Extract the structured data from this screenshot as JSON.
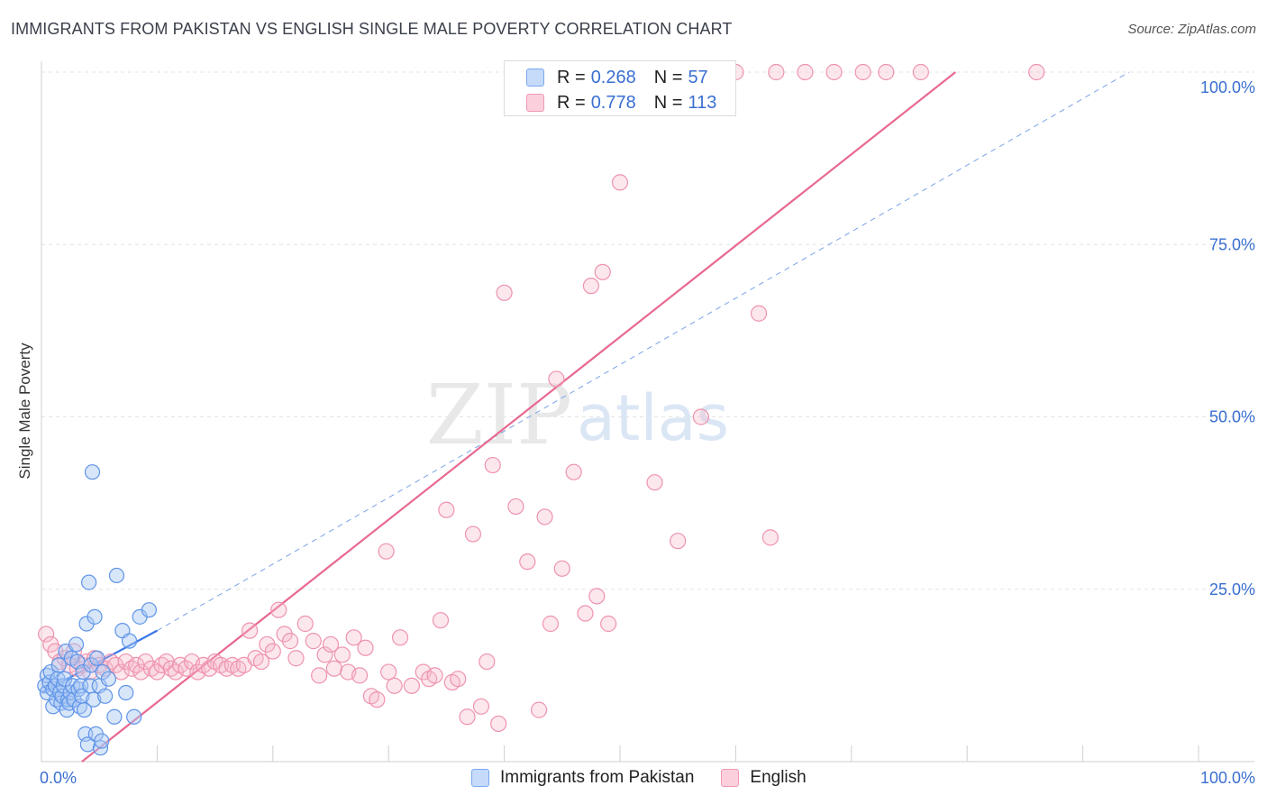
{
  "title": "IMMIGRANTS FROM PAKISTAN VS ENGLISH SINGLE MALE POVERTY CORRELATION CHART",
  "source": "Source: ZipAtlas.com",
  "watermark": {
    "zip": "ZIP",
    "atlas": "atlas"
  },
  "colors": {
    "blue": "#3b78e7",
    "blue_fill": "#a9c7f5",
    "pink": "#e8688f",
    "pink_fill": "#f7b9cc",
    "axis_label": "#3a6fd0",
    "grid": "#e3e3e3"
  },
  "legend": {
    "rows": [
      {
        "r_label": "R =",
        "r_value": "0.268",
        "n_label": "N =",
        "n_value": "57"
      },
      {
        "r_label": "R =",
        "r_value": "0.778",
        "n_label": "N =",
        "n_value": "113"
      }
    ]
  },
  "chart_data": {
    "type": "scatter",
    "title": "IMMIGRANTS FROM PAKISTAN VS ENGLISH SINGLE MALE POVERTY CORRELATION CHART",
    "xlabel": "",
    "ylabel": "Single Male Poverty",
    "xlim": [
      0,
      100
    ],
    "ylim": [
      0,
      100
    ],
    "x_tick_labels": [
      "0.0%",
      "100.0%"
    ],
    "y_tick_labels": [
      "25.0%",
      "50.0%",
      "75.0%",
      "100.0%"
    ],
    "y_ticks": [
      25,
      50,
      75,
      100
    ],
    "grid": true,
    "legend_position": "top-center",
    "series": [
      {
        "name": "Immigrants from Pakistan",
        "color": "#3b78e7",
        "r": 0.268,
        "n": 57,
        "trend_solid": [
          [
            0,
            10
          ],
          [
            10,
            19
          ]
        ],
        "trend_dashed": [
          [
            10,
            19
          ],
          [
            94,
            100
          ]
        ],
        "points": [
          [
            0.3,
            11
          ],
          [
            0.5,
            12.5
          ],
          [
            0.5,
            10
          ],
          [
            0.7,
            11.5
          ],
          [
            0.8,
            13
          ],
          [
            1.0,
            10.5
          ],
          [
            1.0,
            8
          ],
          [
            1.2,
            11
          ],
          [
            1.3,
            9
          ],
          [
            1.4,
            12
          ],
          [
            1.5,
            14
          ],
          [
            1.6,
            10
          ],
          [
            1.7,
            8.5
          ],
          [
            1.8,
            9.5
          ],
          [
            1.9,
            11
          ],
          [
            2.0,
            12
          ],
          [
            2.1,
            16
          ],
          [
            2.2,
            7.5
          ],
          [
            2.3,
            9
          ],
          [
            2.4,
            8.5
          ],
          [
            2.5,
            10
          ],
          [
            2.6,
            15
          ],
          [
            2.7,
            11
          ],
          [
            2.8,
            9
          ],
          [
            3.0,
            17
          ],
          [
            3.1,
            14.5
          ],
          [
            3.2,
            10.5
          ],
          [
            3.3,
            8
          ],
          [
            3.4,
            11
          ],
          [
            3.5,
            9.5
          ],
          [
            3.6,
            13
          ],
          [
            3.7,
            7.5
          ],
          [
            3.8,
            4
          ],
          [
            3.9,
            20
          ],
          [
            4.0,
            2.5
          ],
          [
            4.1,
            26
          ],
          [
            4.2,
            11
          ],
          [
            4.3,
            14
          ],
          [
            4.4,
            42
          ],
          [
            4.5,
            9
          ],
          [
            4.6,
            21
          ],
          [
            4.7,
            4
          ],
          [
            4.8,
            15
          ],
          [
            5.0,
            11
          ],
          [
            5.1,
            2
          ],
          [
            5.2,
            3
          ],
          [
            5.3,
            13
          ],
          [
            5.5,
            9.5
          ],
          [
            5.8,
            12
          ],
          [
            6.3,
            6.5
          ],
          [
            6.5,
            27
          ],
          [
            7.0,
            19
          ],
          [
            7.3,
            10
          ],
          [
            7.6,
            17.5
          ],
          [
            8.0,
            6.5
          ],
          [
            8.5,
            21
          ],
          [
            9.3,
            22
          ]
        ]
      },
      {
        "name": "English",
        "color": "#e8688f",
        "r": 0.778,
        "n": 113,
        "trend_solid": [
          [
            3.5,
            0
          ],
          [
            79,
            100
          ]
        ],
        "points": [
          [
            0.4,
            18.5
          ],
          [
            0.8,
            17
          ],
          [
            1.2,
            16
          ],
          [
            1.6,
            14.5
          ],
          [
            2.0,
            15
          ],
          [
            2.4,
            14
          ],
          [
            2.8,
            16
          ],
          [
            3.1,
            13.5
          ],
          [
            3.5,
            14
          ],
          [
            3.9,
            14.5
          ],
          [
            4.2,
            13
          ],
          [
            4.6,
            15
          ],
          [
            5.0,
            14
          ],
          [
            5.5,
            13.5
          ],
          [
            6.0,
            14.5
          ],
          [
            6.4,
            14
          ],
          [
            6.9,
            13
          ],
          [
            7.3,
            14.5
          ],
          [
            7.8,
            13.5
          ],
          [
            8.2,
            14
          ],
          [
            8.6,
            13
          ],
          [
            9.0,
            14.5
          ],
          [
            9.5,
            13.5
          ],
          [
            10.0,
            13
          ],
          [
            10.4,
            14
          ],
          [
            10.8,
            14.5
          ],
          [
            11.2,
            13.5
          ],
          [
            11.6,
            13
          ],
          [
            12.0,
            14
          ],
          [
            12.5,
            13.5
          ],
          [
            13.0,
            14.5
          ],
          [
            13.5,
            13
          ],
          [
            14.0,
            14
          ],
          [
            14.5,
            13.5
          ],
          [
            15.0,
            14.5
          ],
          [
            15.5,
            14
          ],
          [
            16.0,
            13.5
          ],
          [
            16.5,
            14
          ],
          [
            17.0,
            13.5
          ],
          [
            17.5,
            14
          ],
          [
            18.0,
            19
          ],
          [
            18.5,
            15
          ],
          [
            19.0,
            14.5
          ],
          [
            19.5,
            17
          ],
          [
            20.0,
            16
          ],
          [
            20.5,
            22
          ],
          [
            21.0,
            18.5
          ],
          [
            21.5,
            17.5
          ],
          [
            22.0,
            15
          ],
          [
            22.8,
            20
          ],
          [
            23.5,
            17.5
          ],
          [
            24.0,
            12.5
          ],
          [
            24.5,
            15.5
          ],
          [
            25.0,
            17
          ],
          [
            25.3,
            13.5
          ],
          [
            26.0,
            15.5
          ],
          [
            26.5,
            13
          ],
          [
            27.0,
            18
          ],
          [
            27.5,
            12.5
          ],
          [
            28.0,
            16.5
          ],
          [
            28.5,
            9.5
          ],
          [
            29.0,
            9
          ],
          [
            29.8,
            30.5
          ],
          [
            30.0,
            13
          ],
          [
            30.5,
            11
          ],
          [
            31.0,
            18
          ],
          [
            32.0,
            11
          ],
          [
            33.0,
            13
          ],
          [
            33.5,
            12
          ],
          [
            34.0,
            12.5
          ],
          [
            34.5,
            20.5
          ],
          [
            35.0,
            36.5
          ],
          [
            35.5,
            11.5
          ],
          [
            36.0,
            12
          ],
          [
            36.8,
            6.5
          ],
          [
            37.3,
            33
          ],
          [
            38.0,
            8
          ],
          [
            38.5,
            14.5
          ],
          [
            39.0,
            43
          ],
          [
            39.5,
            5.5
          ],
          [
            40.0,
            68
          ],
          [
            41.0,
            37
          ],
          [
            42.0,
            29
          ],
          [
            43.0,
            7.5
          ],
          [
            43.5,
            35.5
          ],
          [
            44.0,
            20
          ],
          [
            44.5,
            55.5
          ],
          [
            45.0,
            28
          ],
          [
            45.5,
            100
          ],
          [
            46.0,
            42
          ],
          [
            47.0,
            21.5
          ],
          [
            47.5,
            69
          ],
          [
            48.0,
            24
          ],
          [
            48.5,
            71
          ],
          [
            49.0,
            20
          ],
          [
            49.5,
            100
          ],
          [
            50.0,
            84
          ],
          [
            51.0,
            100
          ],
          [
            52.0,
            100
          ],
          [
            53.0,
            40.5
          ],
          [
            54.0,
            100
          ],
          [
            55.0,
            32
          ],
          [
            56.0,
            100
          ],
          [
            57.0,
            50
          ],
          [
            58.0,
            100
          ],
          [
            60.0,
            100
          ],
          [
            62.0,
            65
          ],
          [
            63.0,
            32.5
          ],
          [
            63.5,
            100
          ],
          [
            66.0,
            100
          ],
          [
            68.5,
            100
          ],
          [
            71.0,
            100
          ],
          [
            73.0,
            100
          ],
          [
            76.0,
            100
          ],
          [
            86.0,
            100
          ]
        ]
      }
    ]
  }
}
